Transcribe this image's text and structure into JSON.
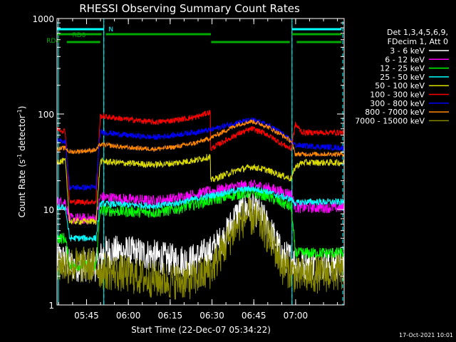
{
  "chart_data": {
    "type": "line",
    "title": "RHESSI Observing Summary Count Rates",
    "xlabel": "Start Time (22-Dec-07 05:34:22)",
    "ylabel": "Count Rate (s",
    "ylabel_sup1": "-1",
    "ylabel_mid": " detector",
    "ylabel_sup2": "-1",
    "ylabel_end": ")",
    "ylog": true,
    "ylim": [
      1,
      1000
    ],
    "xlim_minutes": [
      0,
      103
    ],
    "x_ticks": [
      {
        "label": "05:45",
        "min": 10.6
      },
      {
        "label": "06:00",
        "min": 25.6
      },
      {
        "label": "06:15",
        "min": 40.6
      },
      {
        "label": "06:30",
        "min": 55.6
      },
      {
        "label": "06:45",
        "min": 70.6
      },
      {
        "label": "07:00",
        "min": 85.6
      }
    ],
    "y_ticks": [
      {
        "label": "1",
        "v": 1
      },
      {
        "label": "10",
        "v": 10
      },
      {
        "label": "100",
        "v": 100
      },
      {
        "label": "1000",
        "v": 1000
      }
    ],
    "legend_header": [
      "Det 1,3,4,5,6,9,",
      "FDecim 1, Att 0"
    ],
    "timestamp": "17-Oct-2021 10:01",
    "flags": [
      {
        "label": "N",
        "color": "#00ffff"
      },
      {
        "label": "RD0",
        "color": "#00aa00"
      },
      {
        "label": "RD4",
        "color": "#00aa00"
      }
    ],
    "night_intervals_min": [
      [
        0,
        16.8
      ],
      [
        84.3,
        103
      ]
    ],
    "series": [
      {
        "name": "3 - 6 keV",
        "color": "#ffffff",
        "noise": 0.35,
        "points": [
          [
            0,
            3
          ],
          [
            3,
            3
          ],
          [
            4.5,
            2.6
          ],
          [
            14,
            2.6
          ],
          [
            17,
            3.6
          ],
          [
            24,
            3.6
          ],
          [
            32,
            3.4
          ],
          [
            40,
            3.0
          ],
          [
            48,
            2.9
          ],
          [
            55,
            3.6
          ],
          [
            60,
            5
          ],
          [
            64,
            8.5
          ],
          [
            68,
            10.5
          ],
          [
            71,
            10
          ],
          [
            74,
            8
          ],
          [
            78,
            5
          ],
          [
            81,
            3.2
          ],
          [
            84,
            3.1
          ],
          [
            86,
            2.6
          ],
          [
            103,
            2.7
          ]
        ]
      },
      {
        "name": "6 - 12 keV",
        "color": "#ff00ff",
        "noise": 0.12,
        "points": [
          [
            0,
            12
          ],
          [
            3,
            12
          ],
          [
            4.5,
            8
          ],
          [
            14,
            8
          ],
          [
            15.5,
            13.5
          ],
          [
            25,
            12.8
          ],
          [
            35,
            12.3
          ],
          [
            42,
            13
          ],
          [
            50,
            14.5
          ],
          [
            58,
            16
          ],
          [
            65,
            17.5
          ],
          [
            70,
            18
          ],
          [
            75,
            17
          ],
          [
            80,
            15.5
          ],
          [
            84,
            14.5
          ],
          [
            85.5,
            10.5
          ],
          [
            103,
            10.5
          ]
        ]
      },
      {
        "name": "12 - 25 keV",
        "color": "#00ff00",
        "noise": 0.12,
        "points": [
          [
            0,
            5
          ],
          [
            3,
            5
          ],
          [
            4.5,
            2.6
          ],
          [
            14,
            2.6
          ],
          [
            15.5,
            9.8
          ],
          [
            25,
            9.5
          ],
          [
            35,
            9.3
          ],
          [
            42,
            10
          ],
          [
            50,
            11.5
          ],
          [
            58,
            13
          ],
          [
            65,
            14.5
          ],
          [
            70,
            15
          ],
          [
            75,
            14
          ],
          [
            80,
            12
          ],
          [
            84,
            10.5
          ],
          [
            85.5,
            3.5
          ],
          [
            103,
            3.5
          ]
        ]
      },
      {
        "name": "25 - 50 keV",
        "color": "#00ffff",
        "noise": 0.07,
        "points": [
          [
            0,
            10.5
          ],
          [
            3,
            10.5
          ],
          [
            4.5,
            5
          ],
          [
            14,
            5
          ],
          [
            15.5,
            11.5
          ],
          [
            25,
            11.2
          ],
          [
            35,
            10.9
          ],
          [
            42,
            11.5
          ],
          [
            50,
            13
          ],
          [
            58,
            14.5
          ],
          [
            65,
            16
          ],
          [
            70,
            16.5
          ],
          [
            75,
            15.5
          ],
          [
            80,
            13.8
          ],
          [
            84,
            12.8
          ],
          [
            85.5,
            11.6
          ],
          [
            88,
            12
          ],
          [
            103,
            12
          ]
        ]
      },
      {
        "name": "50 - 100 keV",
        "color": "#dddd00",
        "noise": 0.07,
        "points": [
          [
            0,
            32
          ],
          [
            3,
            32
          ],
          [
            4.5,
            7.5
          ],
          [
            14,
            7.5
          ],
          [
            15.5,
            32
          ],
          [
            25,
            30.5
          ],
          [
            35,
            29.5
          ],
          [
            42,
            30.5
          ],
          [
            50,
            33
          ],
          [
            55,
            36
          ],
          [
            55.1,
            20
          ],
          [
            60,
            23
          ],
          [
            65,
            26
          ],
          [
            70,
            28
          ],
          [
            75,
            26
          ],
          [
            80,
            23
          ],
          [
            84,
            21
          ],
          [
            85.5,
            28
          ],
          [
            88,
            31
          ],
          [
            103,
            31
          ]
        ]
      },
      {
        "name": "100 - 300 keV",
        "color": "#ff0000",
        "noise": 0.06,
        "points": [
          [
            0,
            70
          ],
          [
            3,
            66
          ],
          [
            4.5,
            12
          ],
          [
            14,
            12
          ],
          [
            15.5,
            95
          ],
          [
            25,
            88
          ],
          [
            35,
            82
          ],
          [
            42,
            86
          ],
          [
            50,
            93
          ],
          [
            55,
            105
          ],
          [
            55.1,
            43
          ],
          [
            60,
            52
          ],
          [
            65,
            62
          ],
          [
            70,
            70
          ],
          [
            75,
            62
          ],
          [
            80,
            50
          ],
          [
            84,
            43
          ],
          [
            85.5,
            78
          ],
          [
            88,
            64
          ],
          [
            103,
            64
          ]
        ]
      },
      {
        "name": "300 - 800 keV",
        "color": "#0000ff",
        "noise": 0.06,
        "points": [
          [
            0,
            52
          ],
          [
            3,
            52
          ],
          [
            4.5,
            17
          ],
          [
            14,
            17
          ],
          [
            15.5,
            65
          ],
          [
            25,
            60
          ],
          [
            35,
            57
          ],
          [
            42,
            60
          ],
          [
            50,
            65
          ],
          [
            55,
            68
          ],
          [
            60,
            75
          ],
          [
            65,
            82
          ],
          [
            70,
            86
          ],
          [
            75,
            78
          ],
          [
            80,
            65
          ],
          [
            84,
            52
          ],
          [
            85.5,
            47
          ],
          [
            103,
            44
          ]
        ]
      },
      {
        "name": "800 - 7000 keV",
        "color": "#ff8800",
        "noise": 0.05,
        "points": [
          [
            0,
            43
          ],
          [
            3,
            44
          ],
          [
            4.5,
            40
          ],
          [
            14,
            42
          ],
          [
            15.5,
            48
          ],
          [
            25,
            44.5
          ],
          [
            35,
            43
          ],
          [
            42,
            45
          ],
          [
            50,
            50
          ],
          [
            55,
            56
          ],
          [
            60,
            66
          ],
          [
            65,
            78
          ],
          [
            70,
            84
          ],
          [
            75,
            75
          ],
          [
            80,
            62
          ],
          [
            84,
            52
          ],
          [
            85.5,
            38
          ],
          [
            103,
            38
          ]
        ]
      },
      {
        "name": "7000 - 15000 keV",
        "color": "#888800",
        "noise": 0.4,
        "points": [
          [
            0,
            2.6
          ],
          [
            3,
            2.6
          ],
          [
            4.5,
            2.6
          ],
          [
            14,
            2.6
          ],
          [
            15.5,
            2.3
          ],
          [
            25,
            2.1
          ],
          [
            32,
            1.9
          ],
          [
            40,
            1.8
          ],
          [
            48,
            1.8
          ],
          [
            55,
            2.3
          ],
          [
            60,
            4
          ],
          [
            64,
            6.5
          ],
          [
            68,
            8.5
          ],
          [
            71,
            8
          ],
          [
            74,
            6.5
          ],
          [
            78,
            4
          ],
          [
            81,
            2.5
          ],
          [
            84,
            2.3
          ],
          [
            86,
            2
          ],
          [
            103,
            2.2
          ]
        ]
      }
    ]
  }
}
